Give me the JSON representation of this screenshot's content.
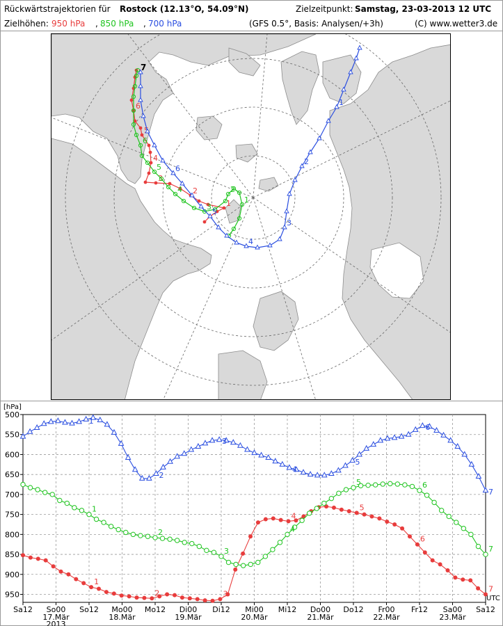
{
  "header": {
    "title_prefix": "Rückwärtstrajektorien für",
    "station": "Rostock (12.13°O, 54.09°N)",
    "target_label": "Zielzeitpunkt:",
    "target_time": "Samstag, 23-03-2013   12 UTC",
    "levels_label": "Zielhöhen:",
    "level_950": "950 hPa",
    "level_850": "850 hPa",
    "level_700": "700 hPa",
    "sep": ",",
    "model_info": "(GFS 0.5°, Basis: Analysen/+3h)",
    "copyright": "(C) www.wetter3.de"
  },
  "colors": {
    "red": "#e83c3c",
    "green": "#1fc41f",
    "blue": "#2a4ee0",
    "land": "#d9d9d9",
    "grid": "#888888"
  },
  "map": {
    "endpoint_label": "7",
    "labels_950": [
      "1",
      "2",
      "3",
      "4",
      "5",
      "6"
    ],
    "labels_850": [
      "1",
      "2",
      "3",
      "4",
      "5",
      "6"
    ],
    "labels_700": [
      "1",
      "2",
      "3",
      "4",
      "5",
      "6"
    ]
  },
  "chart_data": {
    "type": "line",
    "yunit": "[hPa]",
    "xunit": "UTC",
    "ylim": [
      500,
      970
    ],
    "yticks": [
      500,
      550,
      600,
      650,
      700,
      750,
      800,
      850,
      900,
      950
    ],
    "y_inverted": true,
    "x_tick_labels": [
      "Sa12",
      "So00",
      "So12",
      "Mo00",
      "Mo12",
      "Di00",
      "Di12",
      "Mi00",
      "Mi12",
      "Do00",
      "Do12",
      "Fr00",
      "Fr12",
      "Sa00",
      "Sa12"
    ],
    "date_labels": [
      "17.Mär",
      "18.Mär",
      "19.Mär",
      "20.Mär",
      "21.Mär",
      "22.Mär",
      "23.Mär"
    ],
    "year_label": "2013",
    "day_markers": [
      "1",
      "2",
      "3",
      "4",
      "5",
      "6",
      "7"
    ],
    "grid": true,
    "series": [
      {
        "name": "950 hPa",
        "color": "#e83c3c",
        "marker": "filled-circle",
        "values": [
          852,
          858,
          861,
          865,
          880,
          893,
          900,
          912,
          922,
          932,
          936,
          944,
          948,
          953,
          955,
          958,
          959,
          960,
          955,
          950,
          952,
          958,
          960,
          962,
          965,
          966,
          962,
          950,
          888,
          848,
          805,
          770,
          762,
          760,
          764,
          767,
          765,
          755,
          742,
          732,
          730,
          733,
          738,
          742,
          746,
          750,
          755,
          760,
          768,
          775,
          785,
          805,
          825,
          845,
          865,
          875,
          890,
          908,
          913,
          915,
          935,
          950
        ]
      },
      {
        "name": "850 hPa",
        "color": "#1fc41f",
        "marker": "open-circle",
        "values": [
          675,
          683,
          688,
          695,
          700,
          715,
          722,
          733,
          740,
          750,
          762,
          770,
          780,
          788,
          795,
          800,
          803,
          805,
          808,
          810,
          812,
          815,
          820,
          823,
          830,
          840,
          845,
          855,
          870,
          875,
          878,
          875,
          870,
          855,
          838,
          820,
          800,
          782,
          765,
          747,
          735,
          722,
          710,
          697,
          688,
          683,
          678,
          677,
          676,
          674,
          673,
          674,
          676,
          680,
          690,
          702,
          720,
          740,
          755,
          770,
          785,
          800,
          830,
          850
        ]
      },
      {
        "name": "700 hPa",
        "color": "#2a4ee0",
        "marker": "open-triangle",
        "values": [
          555,
          543,
          533,
          523,
          518,
          516,
          520,
          522,
          518,
          512,
          508,
          514,
          525,
          545,
          573,
          608,
          638,
          660,
          660,
          648,
          632,
          618,
          605,
          598,
          588,
          580,
          572,
          565,
          563,
          565,
          570,
          578,
          588,
          596,
          602,
          608,
          617,
          625,
          633,
          638,
          645,
          650,
          652,
          652,
          648,
          640,
          628,
          615,
          600,
          585,
          575,
          565,
          560,
          558,
          555,
          550,
          538,
          528,
          530,
          540,
          552,
          565,
          580,
          600,
          625,
          655,
          690
        ]
      }
    ]
  }
}
